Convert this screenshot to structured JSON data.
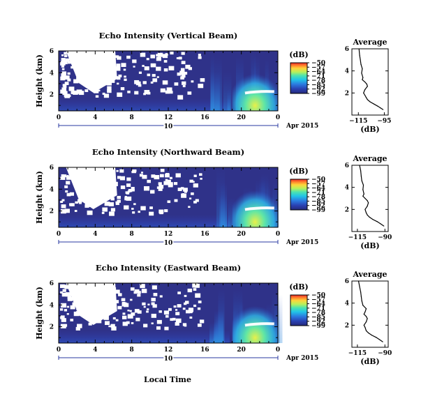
{
  "figure": {
    "xlabel": "Local Time",
    "date_label": "Apr 2015"
  },
  "chart_data": [
    {
      "type": "heatmap",
      "title": "Echo Intensity (Vertical Beam)",
      "ylabel": "Height (km)",
      "xlabel": "Local Time",
      "x_ticks": [
        "0",
        "4",
        "8",
        "12",
        "16",
        "20",
        "0"
      ],
      "y_ticks": [
        "2",
        "4",
        "6"
      ],
      "xlim": [
        0,
        24
      ],
      "ylim": [
        0.5,
        6
      ],
      "date_tick": "10",
      "colorbar": {
        "title": "(dB)",
        "ticks": [
          -50,
          -57,
          -64,
          -71,
          -78,
          -85,
          -92,
          -99
        ]
      },
      "profile": {
        "title": "Average",
        "xlabel": "(dB)",
        "x_ticks": [
          "-115",
          "-95"
        ],
        "xlim": [
          -120,
          -92
        ],
        "y_ticks": [
          "2",
          "4",
          "6"
        ],
        "ylim": [
          0,
          6
        ],
        "points": [
          [
            -96,
            0.5
          ],
          [
            -98,
            0.65
          ],
          [
            -100,
            0.8
          ],
          [
            -103,
            1.0
          ],
          [
            -106,
            1.2
          ],
          [
            -108,
            1.4
          ],
          [
            -109,
            1.6
          ],
          [
            -110,
            1.8
          ],
          [
            -111,
            2.0
          ],
          [
            -110,
            2.3
          ],
          [
            -108,
            2.6
          ],
          [
            -108.5,
            2.8
          ],
          [
            -110,
            3.0
          ],
          [
            -112,
            3.2
          ],
          [
            -111.5,
            3.4
          ],
          [
            -112.5,
            3.8
          ],
          [
            -112,
            4.2
          ],
          [
            -113,
            4.6
          ],
          [
            -113.5,
            5.0
          ],
          [
            -114,
            5.4
          ],
          [
            -114.5,
            6.0
          ]
        ]
      }
    },
    {
      "type": "heatmap",
      "title": "Echo Intensity (Northward Beam)",
      "ylabel": "Height (km)",
      "xlabel": "Local Time",
      "x_ticks": [
        "0",
        "4",
        "8",
        "12",
        "16",
        "20",
        "0"
      ],
      "y_ticks": [
        "2",
        "4",
        "6"
      ],
      "xlim": [
        0,
        24
      ],
      "ylim": [
        0.5,
        6
      ],
      "date_tick": "10",
      "colorbar": {
        "title": "(dB)",
        "ticks": [
          -50,
          -57,
          -64,
          -71,
          -78,
          -85,
          -92,
          -99
        ]
      },
      "profile": {
        "title": "Average",
        "xlabel": "(dB)",
        "x_ticks": [
          "-115",
          "-90"
        ],
        "xlim": [
          -120,
          -87
        ],
        "y_ticks": [
          "2",
          "4",
          "6"
        ],
        "ylim": [
          0,
          6
        ],
        "points": [
          [
            -91,
            0.5
          ],
          [
            -94,
            0.7
          ],
          [
            -97,
            0.9
          ],
          [
            -101,
            1.1
          ],
          [
            -104,
            1.3
          ],
          [
            -106,
            1.5
          ],
          [
            -107,
            1.7
          ],
          [
            -108,
            2.0
          ],
          [
            -106,
            2.3
          ],
          [
            -105,
            2.6
          ],
          [
            -106,
            2.8
          ],
          [
            -108,
            3.0
          ],
          [
            -110,
            3.2
          ],
          [
            -109,
            3.4
          ],
          [
            -110,
            3.8
          ],
          [
            -109.5,
            4.2
          ],
          [
            -111,
            4.6
          ],
          [
            -111.5,
            5.0
          ],
          [
            -112,
            5.5
          ],
          [
            -113,
            6.0
          ]
        ]
      }
    },
    {
      "type": "heatmap",
      "title": "Echo Intensity (Eastward Beam)",
      "ylabel": "Height (km)",
      "xlabel": "Local Time",
      "x_ticks": [
        "0",
        "4",
        "8",
        "12",
        "16",
        "20",
        "0"
      ],
      "y_ticks": [
        "2",
        "4",
        "6"
      ],
      "xlim": [
        0,
        24
      ],
      "ylim": [
        0.5,
        6
      ],
      "date_tick": "10",
      "colorbar": {
        "title": "(dB)",
        "ticks": [
          -50,
          -57,
          -64,
          -71,
          -78,
          -85,
          -92,
          -99
        ]
      },
      "profile": {
        "title": "Average",
        "xlabel": "(dB)",
        "x_ticks": [
          "-115",
          "-90"
        ],
        "xlim": [
          -120,
          -87
        ],
        "y_ticks": [
          "2",
          "4",
          "6"
        ],
        "ylim": [
          0,
          6
        ],
        "points": [
          [
            -92,
            0.5
          ],
          [
            -95,
            0.7
          ],
          [
            -98,
            0.9
          ],
          [
            -102,
            1.1
          ],
          [
            -105,
            1.3
          ],
          [
            -107,
            1.5
          ],
          [
            -108,
            1.8
          ],
          [
            -109,
            2.0
          ],
          [
            -107,
            2.3
          ],
          [
            -106,
            2.6
          ],
          [
            -107,
            2.8
          ],
          [
            -109,
            3.0
          ],
          [
            -108,
            3.2
          ],
          [
            -107,
            3.5
          ],
          [
            -110,
            3.8
          ],
          [
            -111,
            4.2
          ],
          [
            -111.5,
            4.6
          ],
          [
            -112,
            5.0
          ],
          [
            -113,
            5.5
          ],
          [
            -114,
            6.0
          ]
        ]
      }
    }
  ]
}
